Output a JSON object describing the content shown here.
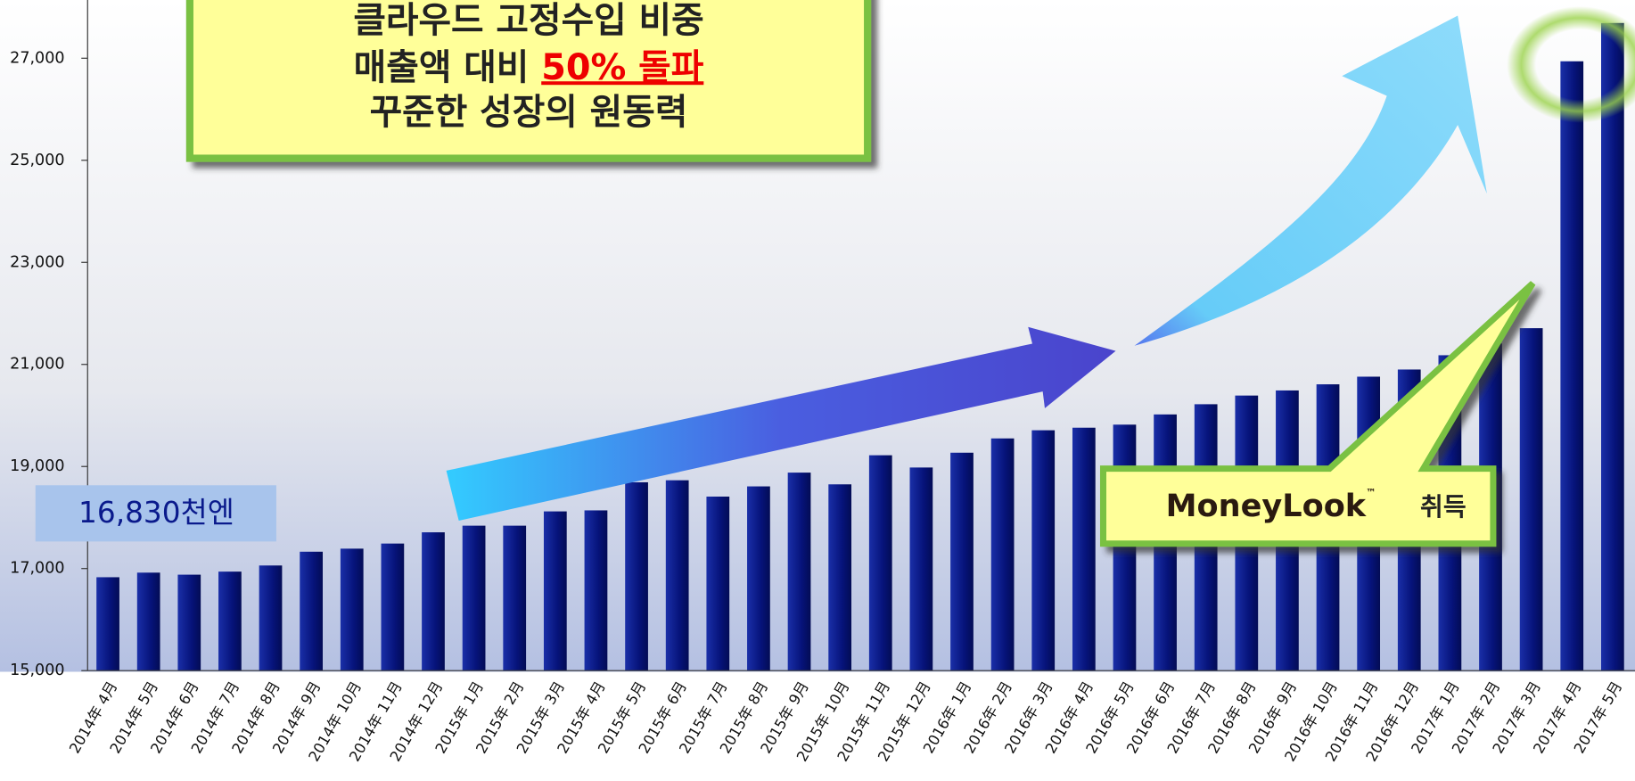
{
  "chart_data": {
    "type": "bar",
    "categories": [
      "2014年 4月",
      "2014年 5月",
      "2014年 6月",
      "2014年 7月",
      "2014年 8月",
      "2014年 9月",
      "2014年 10月",
      "2014年 11月",
      "2014年 12月",
      "2015年 1月",
      "2015年 2月",
      "2015年 3月",
      "2015年 4月",
      "2015年 5月",
      "2015年 6月",
      "2015年 7月",
      "2015年 8月",
      "2015年 9月",
      "2015年 10月",
      "2015年 11月",
      "2015年 12月",
      "2016年 1月",
      "2016年 2月",
      "2016年 3月",
      "2016年 4月",
      "2016年 5月",
      "2016年 6月",
      "2016年 7月",
      "2016年 8月",
      "2016年 9月",
      "2016年 10月",
      "2016年 11月",
      "2016年 12月",
      "2017年 1月",
      "2017年 2月",
      "2017年 3月",
      "2017年 4月",
      "2017年 5月"
    ],
    "values": [
      16830,
      16920,
      16880,
      16940,
      17060,
      17330,
      17390,
      17490,
      17710,
      17840,
      17840,
      18120,
      18140,
      18690,
      18730,
      18410,
      18610,
      18880,
      18650,
      19220,
      18980,
      19270,
      19550,
      19710,
      19760,
      19820,
      20020,
      20220,
      20390,
      20490,
      20610,
      20760,
      20900,
      21180,
      21410,
      21710,
      26940,
      27690
    ],
    "color": "#0a1a8c",
    "ylim": [
      15000,
      28100
    ],
    "yticks": [
      {
        "value": 15000,
        "label": "15,000"
      },
      {
        "value": 17000,
        "label": "17,000"
      },
      {
        "value": 19000,
        "label": "19,000"
      },
      {
        "value": 21000,
        "label": "21,000"
      },
      {
        "value": 23000,
        "label": "23,000"
      },
      {
        "value": 25000,
        "label": "25,000"
      },
      {
        "value": 27000,
        "label": "27,000"
      }
    ],
    "annotations": {
      "headline": [
        "클라우드 고정수입 비중",
        "매출액 대비 ",
        "50% 돌파",
        "꾸준한 성장의 원동력"
      ],
      "start_label": "16,830천엔",
      "logo": "MoneyLook",
      "logo_mark": "™",
      "logo_suffix": "취득"
    }
  }
}
